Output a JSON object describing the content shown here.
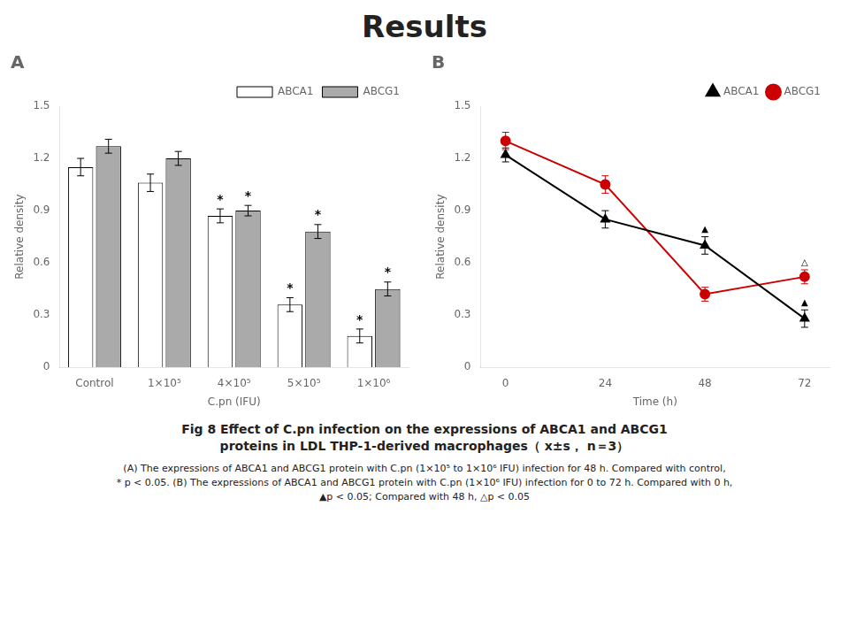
{
  "title": "Results",
  "caption": [
    "Fig 8  Effect of C.pn infection on the expressions of ABCA1 and ABCG1\nproteins in LDL THP-1-derived macrophages（ x±s， n＝3）",
    "(A) The expressions of ABCA1 and ABCG1 protein with C.pn (1×10⁵ to 1×10⁶ IFU) infection for 48 h. Compared with control,\n* p < 0.05. (B) The expressions of ABCA1 and ABCG1 protein with C.pn (1×10⁶ IFU) infection for 0 to 72 h. Compared with 0 h,\n▲p < 0.05; Compared with 48 h, △p < 0.05"
  ],
  "chart_data": [
    {
      "type": "bar",
      "title": "A",
      "categories": [
        "Control",
        "1×10⁵",
        "4×10⁵",
        "5×10⁵",
        "1×10⁶"
      ],
      "xlabel": "C.pn (IFU)",
      "ylabel": "Relative density",
      "ylim": [
        0,
        1.5
      ],
      "yticks": [
        0,
        0.3,
        0.6,
        0.9,
        1.2,
        1.5
      ],
      "grid": false,
      "legend": "upper right",
      "series": [
        {
          "name": "ABCA1",
          "color": "#ffffff",
          "values": [
            1.15,
            1.06,
            0.87,
            0.36,
            0.18
          ],
          "errors": [
            0.05,
            0.05,
            0.04,
            0.04,
            0.04
          ]
        },
        {
          "name": "ABCG1",
          "color": "#aaaaaa",
          "values": [
            1.27,
            1.2,
            0.9,
            0.78,
            0.45
          ],
          "errors": [
            0.04,
            0.04,
            0.03,
            0.04,
            0.04
          ]
        }
      ],
      "annotations": [
        {
          "text": "*",
          "series": "ABCA1",
          "category": "4×10⁵"
        },
        {
          "text": "*",
          "series": "ABCG1",
          "category": "4×10⁵"
        },
        {
          "text": "*",
          "series": "ABCA1",
          "category": "5×10⁵"
        },
        {
          "text": "*",
          "series": "ABCG1",
          "category": "5×10⁵"
        },
        {
          "text": "*",
          "series": "ABCA1",
          "category": "1×10⁶"
        },
        {
          "text": "*",
          "series": "ABCG1",
          "category": "1×10⁶"
        }
      ]
    },
    {
      "type": "line",
      "title": "B",
      "x": [
        0,
        24,
        48,
        72
      ],
      "xlim": [
        -6,
        78
      ],
      "xticks": [
        0,
        24,
        48,
        72
      ],
      "xlabel": "Time (h)",
      "ylabel": "Relative density",
      "ylim": [
        0,
        1.5
      ],
      "yticks": [
        0,
        0.3,
        0.6,
        0.9,
        1.2,
        1.5
      ],
      "grid": false,
      "legend": "upper right",
      "series": [
        {
          "name": "ABCA1",
          "color": "#000000",
          "marker": "triangle",
          "values": [
            1.22,
            0.85,
            0.7,
            0.28
          ],
          "errors": [
            0.04,
            0.05,
            0.05,
            0.05
          ]
        },
        {
          "name": "ABCG1",
          "color": "#cc0000",
          "marker": "circle",
          "values": [
            1.3,
            1.05,
            0.42,
            0.52
          ],
          "errors": [
            0.05,
            0.05,
            0.04,
            0.04
          ]
        }
      ],
      "annotations": [
        {
          "text": "▲",
          "series": "ABCA1",
          "x": 48
        },
        {
          "text": "▲",
          "series": "ABCA1",
          "x": 72
        },
        {
          "text": "△",
          "series": "ABCG1",
          "x": 72
        }
      ]
    }
  ]
}
